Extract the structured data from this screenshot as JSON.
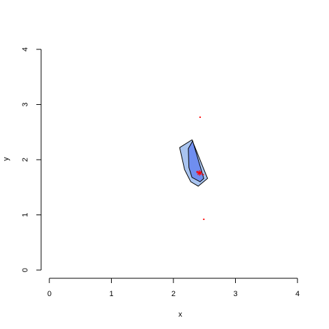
{
  "chart_data": {
    "type": "scatter",
    "title": "",
    "xlabel": "x",
    "ylabel": "y",
    "xlim": [
      0,
      4
    ],
    "ylim": [
      0,
      4
    ],
    "x_ticks": [
      0,
      1,
      2,
      3,
      4
    ],
    "y_ticks": [
      0,
      1,
      2,
      3,
      4
    ],
    "grid": false,
    "legend": "none",
    "colors": {
      "outer_region": "#a9c4f0",
      "inner_region": "#6f8ef0",
      "outline": "#000000",
      "points": "#ff0000",
      "center": "#ff0000"
    },
    "outer_region": [
      [
        2.1,
        2.22
      ],
      [
        2.3,
        2.36
      ],
      [
        2.55,
        1.66
      ],
      [
        2.4,
        1.52
      ],
      [
        2.28,
        1.6
      ],
      [
        2.18,
        1.82
      ]
    ],
    "inner_region": [
      [
        2.24,
        2.2
      ],
      [
        2.31,
        2.34
      ],
      [
        2.49,
        1.66
      ],
      [
        2.43,
        1.6
      ],
      [
        2.3,
        1.68
      ],
      [
        2.25,
        1.86
      ]
    ],
    "points": [
      {
        "x": 2.43,
        "y": 2.77
      },
      {
        "x": 2.49,
        "y": 0.92
      },
      {
        "x": 2.44,
        "y": 1.76
      },
      {
        "x": 2.48,
        "y": 1.73
      },
      {
        "x": 2.38,
        "y": 1.78
      }
    ],
    "center": {
      "x": 2.42,
      "y": 1.76
    }
  }
}
